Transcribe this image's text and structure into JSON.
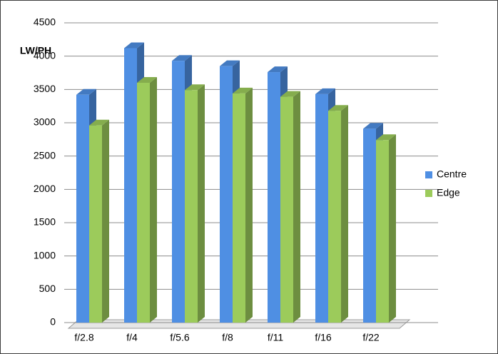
{
  "chart_data": {
    "type": "bar3d",
    "y_label": "LW/PH",
    "categories": [
      "f/2.8",
      "f/4",
      "f/5.6",
      "f/8",
      "f/11",
      "f/16",
      "f/22"
    ],
    "series": [
      {
        "name": "Centre",
        "color": "#4f8fe3",
        "values": [
          3420,
          4120,
          3930,
          3850,
          3760,
          3430,
          2910
        ]
      },
      {
        "name": "Edge",
        "color": "#9ccb5b",
        "values": [
          2960,
          3600,
          3490,
          3440,
          3390,
          3180,
          2740
        ]
      }
    ],
    "ylim": [
      0,
      4500
    ],
    "yticks": [
      0,
      500,
      1000,
      1500,
      2000,
      2500,
      3000,
      3500,
      4000,
      4500
    ],
    "grid": true,
    "legend": "right"
  }
}
